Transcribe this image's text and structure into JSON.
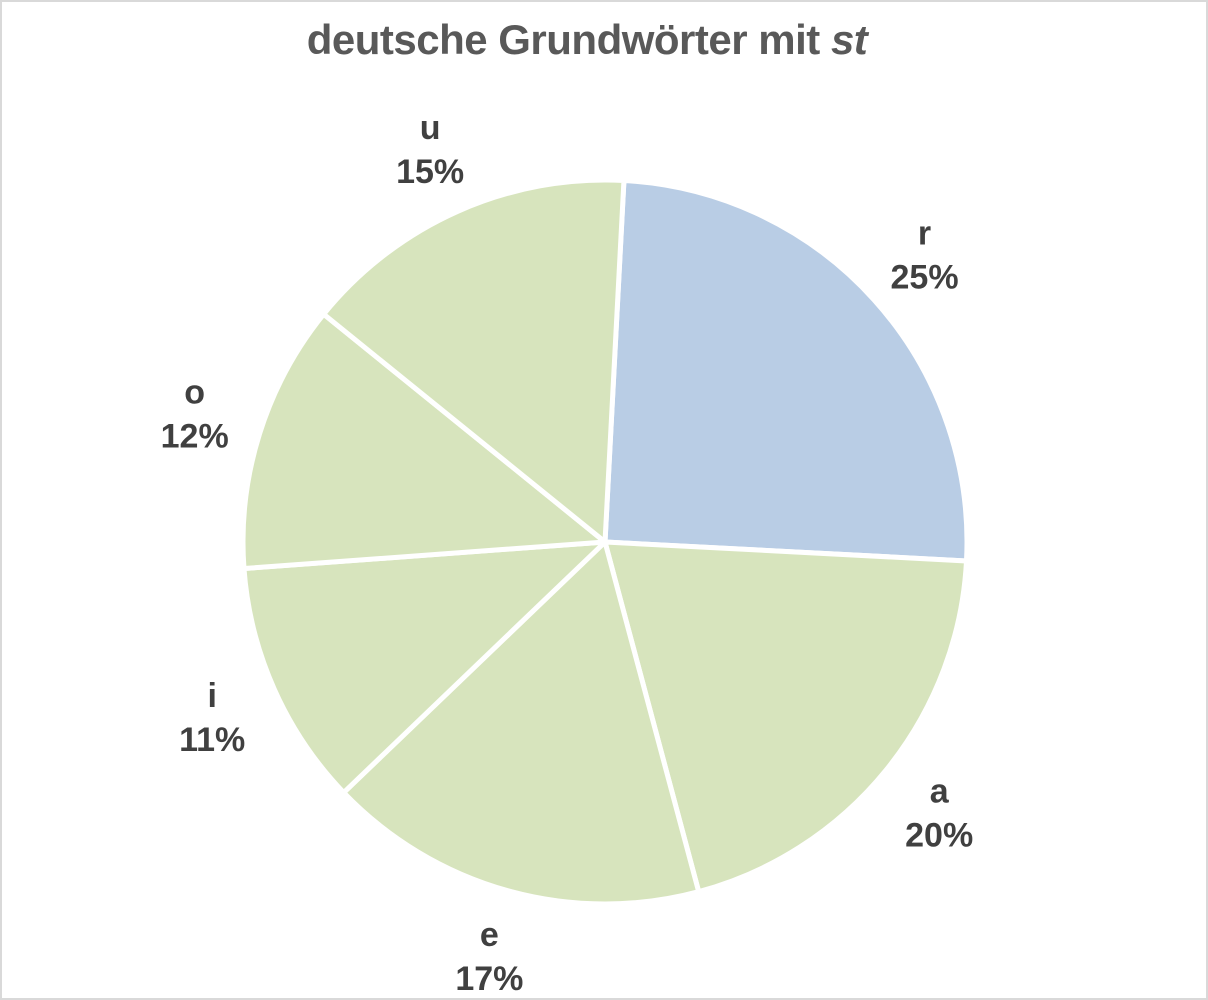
{
  "chart_data": {
    "type": "pie",
    "title": "deutsche Grundwörter mit",
    "title_italic": "st",
    "start_angle_deg": 3,
    "direction": "clockwise",
    "slices": [
      {
        "label": "r",
        "percent_label": "25%",
        "value": 25,
        "color": "#b9cde5"
      },
      {
        "label": "a",
        "percent_label": "20%",
        "value": 20,
        "color": "#d7e4bd"
      },
      {
        "label": "e",
        "percent_label": "17%",
        "value": 17,
        "color": "#d7e4bd"
      },
      {
        "label": "i",
        "percent_label": "11%",
        "value": 11,
        "color": "#d7e4bd"
      },
      {
        "label": "o",
        "percent_label": "12%",
        "value": 12,
        "color": "#d7e4bd"
      },
      {
        "label": "u",
        "percent_label": "15%",
        "value": 15,
        "color": "#d7e4bd"
      }
    ],
    "legend": false
  }
}
